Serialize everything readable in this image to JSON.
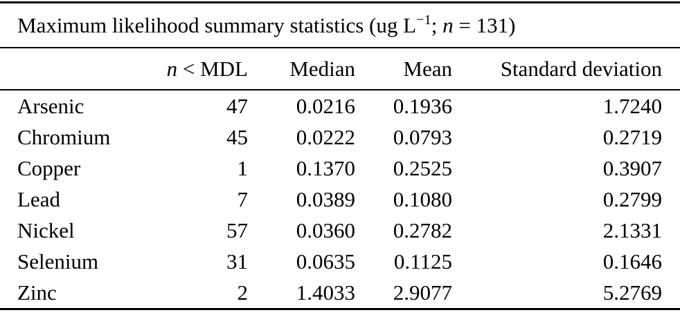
{
  "title": {
    "prefix": "Maximum likelihood summary statistics (ug L",
    "superscript": "−1",
    "separator": "; ",
    "n_symbol": "n",
    "suffix": " = 131)"
  },
  "header": {
    "element_col": "",
    "n_mdl_italic": "n",
    "n_mdl_rest": " < MDL",
    "median": "Median",
    "mean": "Mean",
    "sd": "Standard deviation"
  },
  "rows": [
    {
      "element": "Arsenic",
      "n_mdl": "47",
      "median": "0.0216",
      "mean": "0.1936",
      "sd": "1.7240"
    },
    {
      "element": "Chromium",
      "n_mdl": "45",
      "median": "0.0222",
      "mean": "0.0793",
      "sd": "0.2719"
    },
    {
      "element": "Copper",
      "n_mdl": "1",
      "median": "0.1370",
      "mean": "0.2525",
      "sd": "0.3907"
    },
    {
      "element": "Lead",
      "n_mdl": "7",
      "median": "0.0389",
      "mean": "0.1080",
      "sd": "0.2799"
    },
    {
      "element": "Nickel",
      "n_mdl": "57",
      "median": "0.0360",
      "mean": "0.2782",
      "sd": "2.1331"
    },
    {
      "element": "Selenium",
      "n_mdl": "31",
      "median": "0.0635",
      "mean": "0.1125",
      "sd": "0.1646"
    },
    {
      "element": "Zinc",
      "n_mdl": "2",
      "median": "1.4033",
      "mean": "2.9077",
      "sd": "5.2769"
    }
  ],
  "colors": {
    "text": "#000000",
    "background": "#ffffff",
    "rule": "#000000"
  },
  "chart_data": {
    "type": "table",
    "title": "Maximum likelihood summary statistics (ug L−1; n = 131)",
    "units": "ug L−1",
    "n_total": 131,
    "columns": [
      "",
      "n < MDL",
      "Median",
      "Mean",
      "Standard deviation"
    ],
    "rows": [
      [
        "Arsenic",
        47,
        0.0216,
        0.1936,
        1.724
      ],
      [
        "Chromium",
        45,
        0.0222,
        0.0793,
        0.2719
      ],
      [
        "Copper",
        1,
        0.137,
        0.2525,
        0.3907
      ],
      [
        "Lead",
        7,
        0.0389,
        0.108,
        0.2799
      ],
      [
        "Nickel",
        57,
        0.036,
        0.2782,
        2.1331
      ],
      [
        "Selenium",
        31,
        0.0635,
        0.1125,
        0.1646
      ],
      [
        "Zinc",
        2,
        1.4033,
        2.9077,
        5.2769
      ]
    ]
  }
}
